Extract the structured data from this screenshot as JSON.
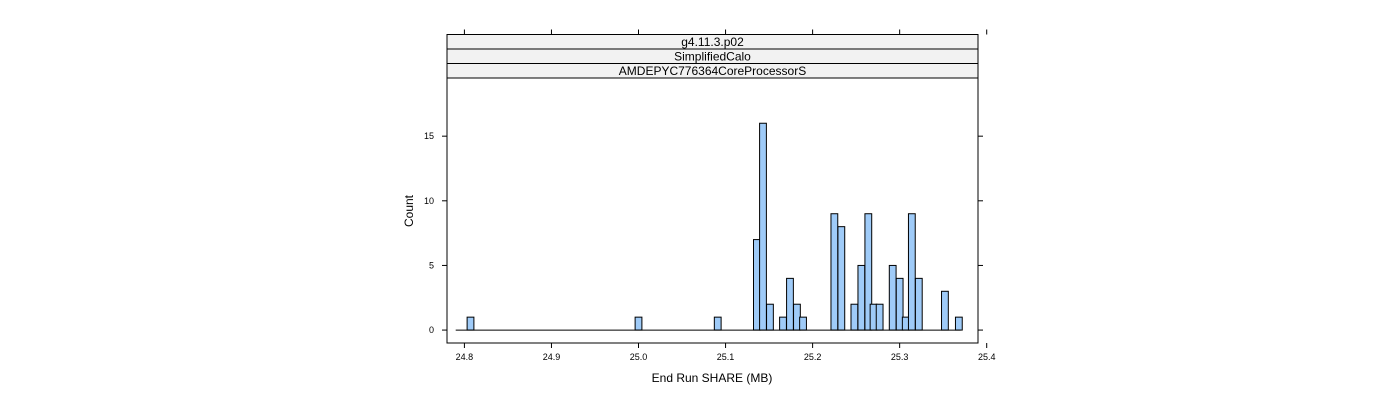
{
  "chart_data": {
    "type": "bar",
    "strips": [
      "g4.11.3.p02",
      "SimplifiedCalo",
      "AMDEPYC776364CoreProcessorS"
    ],
    "xlabel": "End Run SHARE (MB)",
    "ylabel": "Count",
    "xlim": [
      24.78,
      25.39
    ],
    "ylim": [
      -1,
      19.5
    ],
    "xticks": [
      24.8,
      24.9,
      25.0,
      25.1,
      25.2,
      25.3,
      25.4
    ],
    "xtick_labels": [
      "24.8",
      "24.9",
      "25.0",
      "25.1",
      "25.2",
      "25.3",
      "25.4"
    ],
    "yticks": [
      0,
      5,
      10,
      15
    ],
    "ytick_labels": [
      "0",
      "5",
      "10",
      "15"
    ],
    "bin_width": 0.0078,
    "baseline_range": [
      24.79,
      25.37
    ],
    "bins": [
      {
        "x": 24.807,
        "count": 1
      },
      {
        "x": 25.0,
        "count": 1
      },
      {
        "x": 25.091,
        "count": 1
      },
      {
        "x": 25.136,
        "count": 7
      },
      {
        "x": 25.143,
        "count": 16
      },
      {
        "x": 25.151,
        "count": 2
      },
      {
        "x": 25.166,
        "count": 1
      },
      {
        "x": 25.174,
        "count": 4
      },
      {
        "x": 25.182,
        "count": 2
      },
      {
        "x": 25.189,
        "count": 1
      },
      {
        "x": 25.225,
        "count": 9
      },
      {
        "x": 25.233,
        "count": 8
      },
      {
        "x": 25.248,
        "count": 2
      },
      {
        "x": 25.256,
        "count": 5
      },
      {
        "x": 25.264,
        "count": 9
      },
      {
        "x": 25.27,
        "count": 2
      },
      {
        "x": 25.277,
        "count": 2
      },
      {
        "x": 25.292,
        "count": 5
      },
      {
        "x": 25.3,
        "count": 4
      },
      {
        "x": 25.307,
        "count": 1
      },
      {
        "x": 25.314,
        "count": 9
      },
      {
        "x": 25.322,
        "count": 4
      },
      {
        "x": 25.352,
        "count": 3
      },
      {
        "x": 25.368,
        "count": 1
      }
    ],
    "bar_color": "#9fcbf8",
    "bar_stroke": "#000000",
    "strip_color": "#f2f2f2",
    "grid": false
  }
}
